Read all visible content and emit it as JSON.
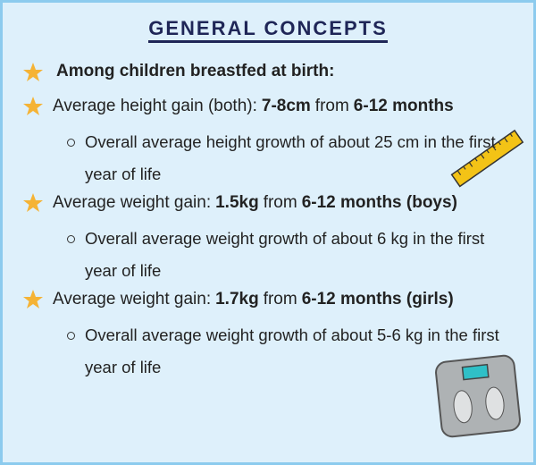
{
  "title": "GENERAL CONCEPTS",
  "intro": "Among children breastfed at birth:",
  "items": [
    {
      "parts": [
        {
          "text": "Average height gain (both):",
          "bold": false
        },
        {
          "text": "7-8cm",
          "bold": true
        },
        {
          "text": "from",
          "bold": false
        },
        {
          "text": "6-12 months",
          "bold": true
        }
      ],
      "sub": "Overall average height growth of about 25 cm in the first year of life"
    },
    {
      "parts": [
        {
          "text": "Average weight gain:",
          "bold": false
        },
        {
          "text": "1.5kg",
          "bold": true
        },
        {
          "text": "from",
          "bold": false
        },
        {
          "text": "6-12 months (boys)",
          "bold": true
        }
      ],
      "sub": "Overall average weight growth of about 6 kg in the first year of life"
    },
    {
      "parts": [
        {
          "text": "Average weight gain:",
          "bold": false
        },
        {
          "text": "1.7kg",
          "bold": true
        },
        {
          "text": "from",
          "bold": false
        },
        {
          "text": "6-12 months (girls)",
          "bold": true
        }
      ],
      "sub": "Overall average weight growth of about 5-6 kg in the first year of life"
    }
  ]
}
